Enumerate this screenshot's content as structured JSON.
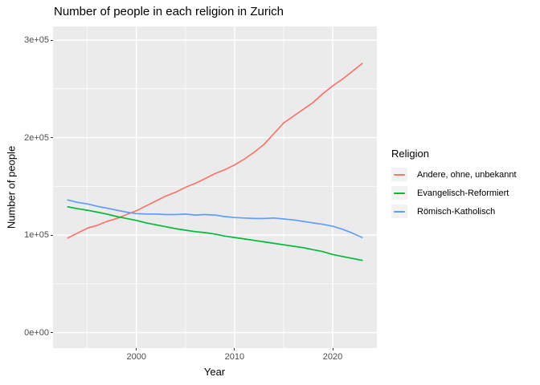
{
  "chart_data": {
    "type": "line",
    "title": "Number of people in each religion in Zurich",
    "xlabel": "Year",
    "ylabel": "Number of people",
    "xlim": [
      1991.5,
      2024.5
    ],
    "ylim": [
      -16000,
      314000
    ],
    "grid": true,
    "legend_position": "right",
    "colors": {
      "panel_bg": "#EBEBEB",
      "grid": "#FFFFFF",
      "tick_mark": "#333333",
      "axis_text": "#4D4D4D",
      "title_text": "#000000",
      "legend_key_bg": "#F2F2F2"
    },
    "x_ticks": [
      {
        "value": 2000,
        "label": "2000"
      },
      {
        "value": 2010,
        "label": "2010"
      },
      {
        "value": 2020,
        "label": "2020"
      }
    ],
    "y_ticks": [
      {
        "value": 0,
        "label": "0e+00"
      },
      {
        "value": 100000,
        "label": "1e+05"
      },
      {
        "value": 200000,
        "label": "2e+05"
      },
      {
        "value": 300000,
        "label": "3e+05"
      }
    ],
    "x_minor": [
      1995,
      2005,
      2015
    ],
    "y_minor": [
      50000,
      150000,
      250000
    ],
    "x": [
      1993,
      1994,
      1995,
      1996,
      1997,
      1998,
      1999,
      2000,
      2001,
      2002,
      2003,
      2004,
      2005,
      2006,
      2007,
      2008,
      2009,
      2010,
      2011,
      2012,
      2013,
      2014,
      2015,
      2016,
      2017,
      2018,
      2019,
      2020,
      2021,
      2022,
      2023
    ],
    "series": [
      {
        "name": "Andere, ohne, unbekannt",
        "color": "#F8766D",
        "values": [
          97000,
          102000,
          107000,
          110000,
          114000,
          117000,
          121000,
          125000,
          130000,
          135000,
          140000,
          144000,
          149000,
          153000,
          158000,
          163000,
          167000,
          172000,
          178000,
          185000,
          193000,
          204000,
          215000,
          222000,
          229000,
          236000,
          245000,
          253000,
          260000,
          268000,
          276000
        ]
      },
      {
        "name": "Evangelisch-Reformiert",
        "color": "#00BA38",
        "values": [
          129000,
          127000,
          125500,
          123500,
          121500,
          119000,
          117000,
          115000,
          112500,
          110500,
          108500,
          106500,
          105000,
          103500,
          102500,
          101000,
          99000,
          97500,
          96000,
          94500,
          93000,
          91500,
          90000,
          88500,
          87000,
          85000,
          83000,
          80000,
          78000,
          76000,
          74000
        ]
      },
      {
        "name": "Römisch-Katholisch",
        "color": "#619CFF",
        "values": [
          136000,
          133500,
          132000,
          129500,
          127500,
          125500,
          123500,
          122000,
          121500,
          121500,
          121000,
          121000,
          121500,
          120500,
          121000,
          120500,
          119000,
          118000,
          117500,
          117000,
          117000,
          117500,
          116500,
          115500,
          114000,
          112500,
          111000,
          109000,
          106000,
          102000,
          97500
        ]
      }
    ]
  },
  "legend": {
    "title": "Religion",
    "items": [
      {
        "label": "Andere, ohne, unbekannt",
        "color": "#F8766D"
      },
      {
        "label": "Evangelisch-Reformiert",
        "color": "#00BA38"
      },
      {
        "label": "Römisch-Katholisch",
        "color": "#619CFF"
      }
    ]
  }
}
